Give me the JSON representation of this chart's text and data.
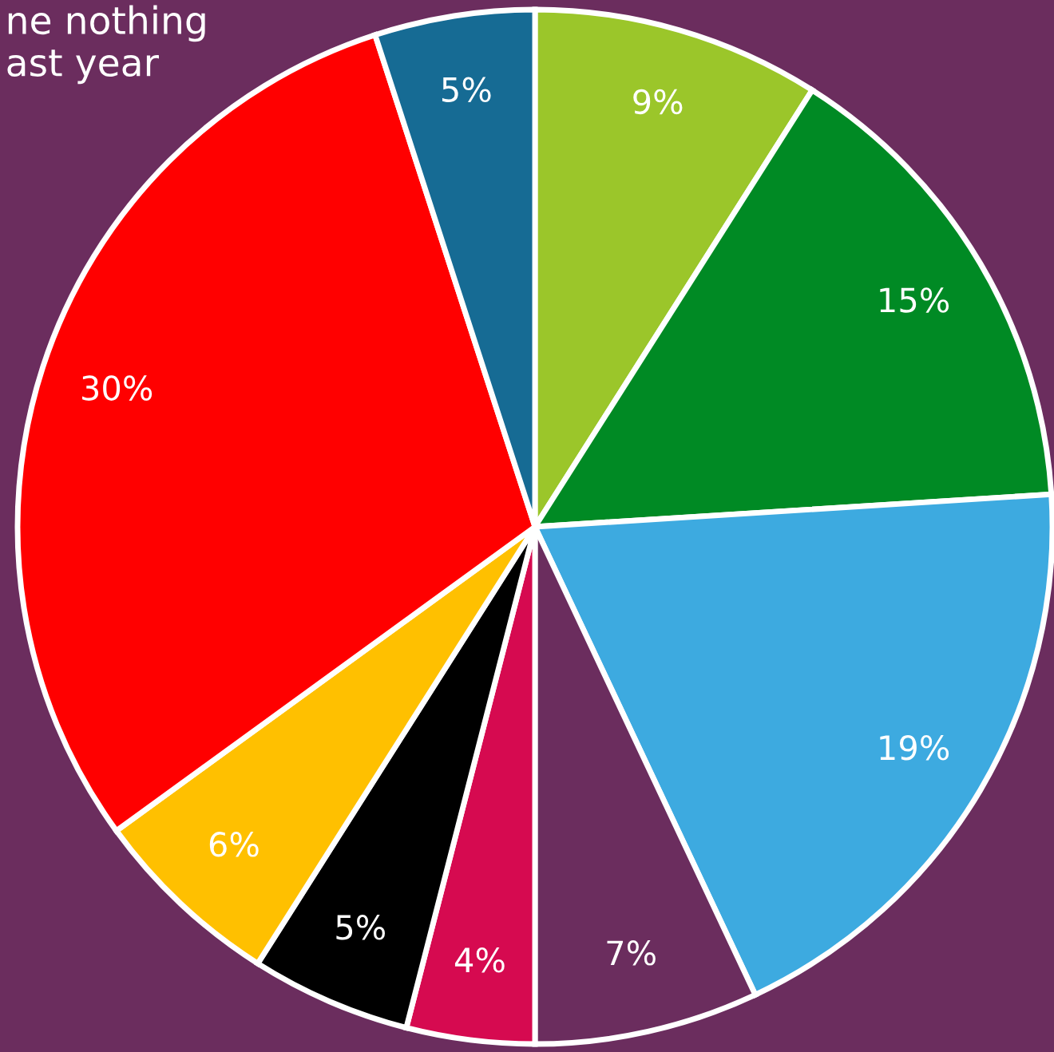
{
  "chart_data": {
    "type": "pie",
    "categories": [
      null,
      null,
      null,
      null,
      null,
      null,
      null,
      null,
      null
    ],
    "values": [
      9,
      15,
      19,
      7,
      4,
      5,
      6,
      30,
      5
    ],
    "value_labels": [
      "9%",
      "15%",
      "19%",
      "7%",
      "4%",
      "5%",
      "6%",
      "30%",
      "5%"
    ],
    "colors": [
      "#9bc62a",
      "#008a24",
      "#3daae0",
      "#6b2d5e",
      "#d60a50",
      "#000000",
      "#ffc000",
      "#ff0000",
      "#166b94"
    ],
    "annotations": [
      "ne nothing\nast year"
    ],
    "legend": false
  }
}
